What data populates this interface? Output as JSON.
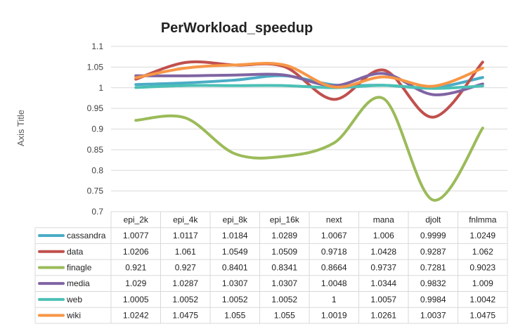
{
  "chart_data": {
    "type": "line",
    "title": "PerWorkload_speedup",
    "ylabel": "Axis Title",
    "xlabel": "",
    "ylim": [
      0.7,
      1.1
    ],
    "y_ticks": [
      "0.7",
      "0.75",
      "0.8",
      "0.85",
      "0.9",
      "0.95",
      "1",
      "1.05",
      "1.1"
    ],
    "gridlines": true,
    "legend_placement": "data-table",
    "categories": [
      "epi_2k",
      "epi_4k",
      "epi_8k",
      "epi_16k",
      "next",
      "mana",
      "djolt",
      "fnlmma"
    ],
    "series": [
      {
        "name": "cassandra",
        "color": "#4bacc6",
        "values": [
          1.0077,
          1.0117,
          1.0184,
          1.0289,
          1.0067,
          1.006,
          0.9999,
          1.0249
        ],
        "labels": [
          "1.0077",
          "1.0117",
          "1.0184",
          "1.0289",
          "1.0067",
          "1.006",
          "0.9999",
          "1.0249"
        ]
      },
      {
        "name": "data",
        "color": "#c0504d",
        "values": [
          1.0206,
          1.061,
          1.0549,
          1.0509,
          0.9718,
          1.0428,
          0.9287,
          1.062
        ],
        "labels": [
          "1.0206",
          "1.061",
          "1.0549",
          "1.0509",
          "0.9718",
          "1.0428",
          "0.9287",
          "1.062"
        ]
      },
      {
        "name": "finagle",
        "color": "#9bbb59",
        "values": [
          0.921,
          0.927,
          0.8401,
          0.8341,
          0.8664,
          0.9737,
          0.7281,
          0.9023
        ],
        "labels": [
          "0.921",
          "0.927",
          "0.8401",
          "0.8341",
          "0.8664",
          "0.9737",
          "0.7281",
          "0.9023"
        ]
      },
      {
        "name": "media",
        "color": "#8064a2",
        "values": [
          1.029,
          1.0287,
          1.0307,
          1.0307,
          1.0048,
          1.0344,
          0.9832,
          1.009
        ],
        "labels": [
          "1.029",
          "1.0287",
          "1.0307",
          "1.0307",
          "1.0048",
          "1.0344",
          "0.9832",
          "1.009"
        ]
      },
      {
        "name": "web",
        "color": "#4bc0b5",
        "values": [
          1.0005,
          1.0052,
          1.0052,
          1.0052,
          1,
          1.0057,
          0.9984,
          1.0042
        ],
        "labels": [
          "1.0005",
          "1.0052",
          "1.0052",
          "1.0052",
          "1",
          "1.0057",
          "0.9984",
          "1.0042"
        ]
      },
      {
        "name": "wiki",
        "color": "#f79646",
        "values": [
          1.0242,
          1.0475,
          1.055,
          1.055,
          1.0019,
          1.0261,
          1.0037,
          1.0475
        ],
        "labels": [
          "1.0242",
          "1.0475",
          "1.055",
          "1.055",
          "1.0019",
          "1.0261",
          "1.0037",
          "1.0475"
        ]
      }
    ]
  }
}
